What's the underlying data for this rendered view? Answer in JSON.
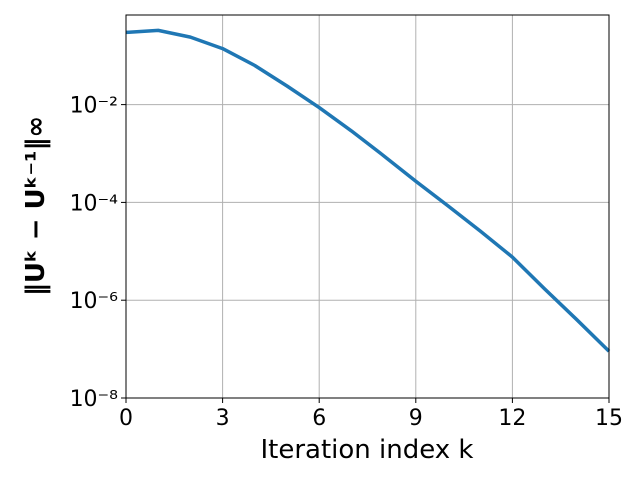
{
  "chart_data": {
    "type": "line",
    "x_label": "Iteration index k",
    "y_label": "‖Uᵏ − Uᵏ⁻¹‖∞",
    "log_y": true,
    "grid": true,
    "xlim": [
      0,
      15
    ],
    "xticks": [
      0,
      3,
      6,
      9,
      12,
      15
    ],
    "ylim": [
      1e-08,
      0.68
    ],
    "yticks": [
      {
        "value": 1e-08,
        "label": "10⁻⁸"
      },
      {
        "value": 1e-06,
        "label": "10⁻⁶"
      },
      {
        "value": 0.0001,
        "label": "10⁻⁴"
      },
      {
        "value": 0.01,
        "label": "10⁻²"
      }
    ],
    "x": [
      0,
      1,
      2,
      3,
      4,
      5,
      6,
      7,
      8,
      9,
      10,
      11,
      12,
      13,
      14,
      15
    ],
    "series": [
      {
        "color": "#1f77b4",
        "values": [
          0.3,
          0.33,
          0.24,
          0.14,
          0.063,
          0.024,
          0.0087,
          0.0029,
          0.0009,
          0.00027,
          8.5e-05,
          2.6e-05,
          7.6e-06,
          1.7e-06,
          4e-07,
          9e-08
        ]
      }
    ]
  }
}
